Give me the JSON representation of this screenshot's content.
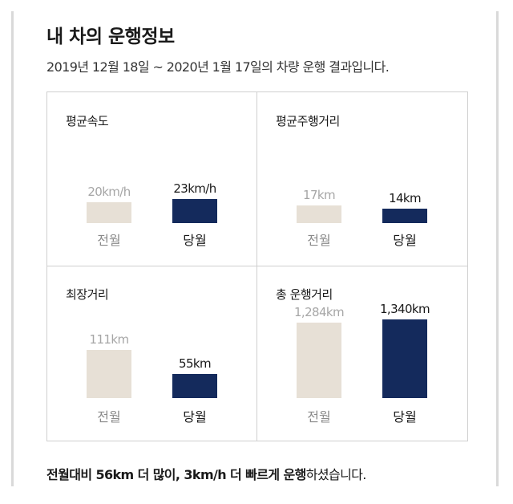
{
  "title": "내 차의 운행정보",
  "subtitle": "2019년 12월 18일 ~ 2020년 1월 17일의 차량 운행 결과입니다.",
  "footer": {
    "bold_part": "전월대비 56km 더 많이, 3km/h 더 빠르게 운행",
    "normal_part": "하셨습니다."
  },
  "colors": {
    "prev": "#e7e0d6",
    "curr": "#142a5c"
  },
  "chart_data": [
    {
      "type": "bar",
      "title": "평균속도",
      "categories": [
        "전월",
        "당월"
      ],
      "values": [
        20,
        23
      ],
      "value_labels": [
        "20km/h",
        "23km/h"
      ],
      "unit": "km/h"
    },
    {
      "type": "bar",
      "title": "평균주행거리",
      "categories": [
        "전월",
        "당월"
      ],
      "values": [
        17,
        14
      ],
      "value_labels": [
        "17km",
        "14km"
      ],
      "unit": "km"
    },
    {
      "type": "bar",
      "title": "최장거리",
      "categories": [
        "전월",
        "당월"
      ],
      "values": [
        111,
        55
      ],
      "value_labels": [
        "111km",
        "55km"
      ],
      "unit": "km"
    },
    {
      "type": "bar",
      "title": "총 운행거리",
      "categories": [
        "전월",
        "당월"
      ],
      "values": [
        1284,
        1340
      ],
      "value_labels": [
        "1,284km",
        "1,340km"
      ],
      "unit": "km"
    }
  ]
}
